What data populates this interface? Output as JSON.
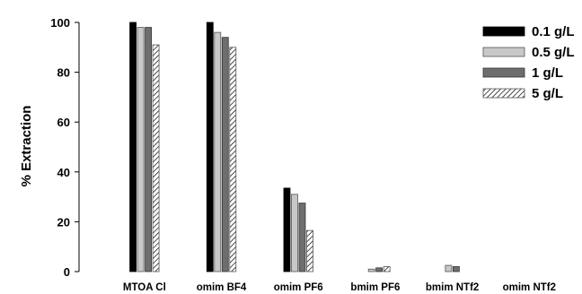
{
  "chart_data": {
    "type": "bar",
    "title": "",
    "xlabel": "",
    "ylabel": "% Extraction",
    "ylim": [
      0,
      100
    ],
    "yticks": [
      0,
      20,
      40,
      60,
      80,
      100
    ],
    "grid": false,
    "legend_position": "top-right",
    "categories": [
      "MTOA Cl",
      "omim BF4",
      "omim PF6",
      "bmim PF6",
      "bmim NTf2",
      "omim NTf2"
    ],
    "series": [
      {
        "name": "0.1 g/L",
        "style": "solid-black",
        "color": "#000000",
        "values": [
          100,
          100,
          33.5,
          0,
          0,
          0
        ]
      },
      {
        "name": "0.5 g/L",
        "style": "light-gray",
        "color": "#c8c8c8",
        "values": [
          98,
          96,
          31,
          1,
          2.5,
          0
        ]
      },
      {
        "name": "1 g/L",
        "style": "dark-gray",
        "color": "#6e6e6e",
        "values": [
          98,
          94,
          27.5,
          1.5,
          2,
          0
        ]
      },
      {
        "name": "5 g/L",
        "style": "hatched",
        "color": "#ffffff",
        "values": [
          91,
          90,
          16.5,
          2,
          0,
          0
        ]
      }
    ]
  }
}
